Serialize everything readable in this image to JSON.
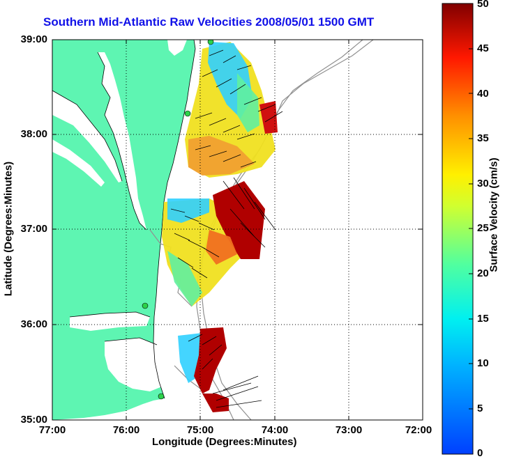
{
  "title": "Southern Mid-Atlantic Raw Velocities 2008/05/01 1500 GMT",
  "x_axis": {
    "label": "Longitude (Degrees:Minutes)",
    "ticks": [
      "77:00",
      "76:00",
      "75:00",
      "74:00",
      "73:00",
      "72:00"
    ]
  },
  "y_axis": {
    "label": "Latitude (Degrees:Minutes)",
    "ticks": [
      "39:00",
      "38:00",
      "37:00",
      "36:00",
      "35:00"
    ]
  },
  "colorbar": {
    "label": "Surface Velocity (cm/s)",
    "ticks": [
      "50",
      "45",
      "40",
      "35",
      "30",
      "25",
      "20",
      "15",
      "10",
      "5",
      "0"
    ],
    "range": [
      0,
      50
    ]
  },
  "colors": {
    "land": "#5ef5b2",
    "title": "#1010e8",
    "bathymetry": "#909090",
    "station": "#2cd24a"
  }
}
